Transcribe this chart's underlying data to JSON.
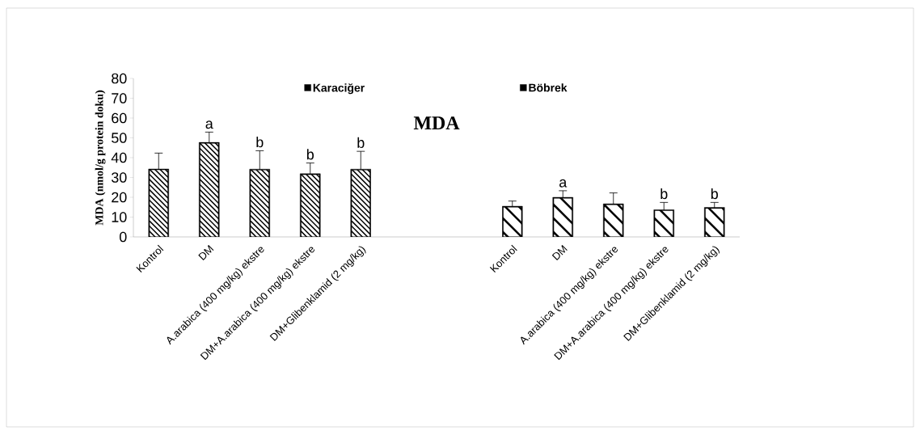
{
  "chart_data": {
    "type": "bar",
    "title": "MDA",
    "ylabel": "MDA (nmol/g protein doku)",
    "categories": [
      "Kontrol",
      "DM",
      "A.arabica (400 mg/kg) ekstre",
      "DM+A.arabica (400 mg/kg) ekstre",
      "DM+Glibenklamid (2 mg/kg)",
      null,
      null,
      "Kontrol",
      "DM",
      "A.arabica (400 mg/kg) ekstre",
      "DM+A.arabica (400 mg/kg) ekstre",
      "DM+Glibenklamid (2 mg/kg)"
    ],
    "series": [
      {
        "name": "Karaciğer",
        "color": "#000000",
        "values": [
          34.3,
          47.7,
          34.2,
          31.9,
          34.2,
          null,
          null,
          null,
          null,
          null,
          null,
          null
        ],
        "errors": [
          8,
          5.2,
          9.3,
          5.4,
          9,
          null,
          null,
          null,
          null,
          null,
          null,
          null
        ],
        "value_labels": [
          null,
          "a",
          "b",
          "b",
          "b",
          null,
          null,
          null,
          null,
          null,
          null,
          null
        ]
      },
      {
        "name": "Böbrek",
        "color": "#000000",
        "values": [
          null,
          null,
          null,
          null,
          null,
          null,
          null,
          15.5,
          20,
          16.7,
          13.7,
          14.9
        ],
        "errors": [
          null,
          null,
          null,
          null,
          null,
          null,
          null,
          2.6,
          3.3,
          5.5,
          3.7,
          2.5
        ],
        "value_labels": [
          null,
          null,
          null,
          null,
          null,
          null,
          null,
          null,
          "a",
          null,
          "b",
          "b"
        ]
      }
    ],
    "ylim": [
      0,
      80
    ],
    "yticks": [
      0,
      10,
      20,
      30,
      40,
      50,
      60,
      70,
      80
    ],
    "legend": "top"
  }
}
